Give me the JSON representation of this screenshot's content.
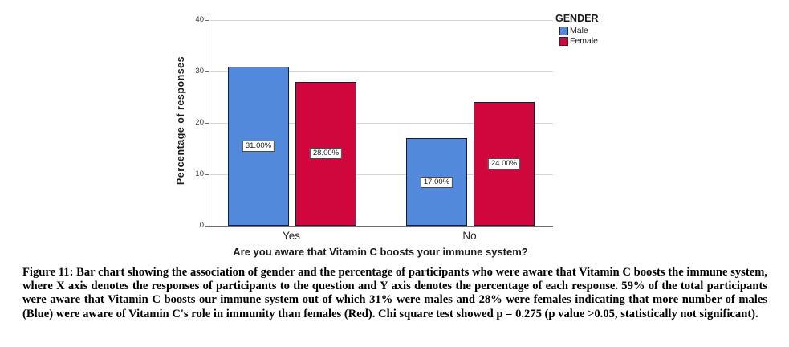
{
  "figure": {
    "caption": "Figure 11: Bar chart showing the association of gender and the percentage of participants who were aware that Vitamin C boosts the immune system, where X axis denotes the responses of participants to the question and Y axis denotes the percentage of each response. 59% of the total participants were aware that Vitamin C boosts our immune system out of which 31% were males and 28% were females indicating that more number of males (Blue) were aware of Vitamin C's role in immunity than females (Red). Chi square test showed p = 0.275 (p value >0.05, statistically not significant)."
  },
  "chart_data": {
    "type": "bar",
    "title": "",
    "xlabel": "Are you aware that Vitamin C boosts your immune system?",
    "ylabel": "Percentage of responses",
    "categories": [
      "Yes",
      "No"
    ],
    "series": [
      {
        "name": "Male",
        "color": "#5389DB",
        "values": [
          31,
          17
        ],
        "labels": [
          "31.00%",
          "17.00%"
        ]
      },
      {
        "name": "Female",
        "color": "#D0073C",
        "values": [
          28,
          24
        ],
        "labels": [
          "28.00%",
          "24.00%"
        ]
      }
    ],
    "ylim": [
      0,
      40
    ],
    "yticks": [
      0,
      10,
      20,
      30,
      40
    ],
    "grid": true,
    "legend": {
      "title": "GENDER",
      "position": "top-right"
    }
  }
}
